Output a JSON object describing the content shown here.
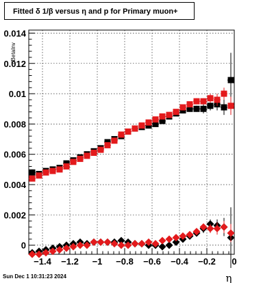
{
  "title": "Fitted δ 1/β versus η and p for Primary muon+",
  "timestamp": "Sun Dec  1 10:31:23 2024",
  "chart_data": {
    "type": "scatter",
    "title": "Fitted δ 1/β versus η and p for Primary muon+",
    "xlabel": "η",
    "ylabel": "dBetaInv",
    "xlim": [
      -1.5,
      0.0
    ],
    "ylim": [
      -0.0006,
      0.0142
    ],
    "grid": true,
    "x_ticks": [
      -1.4,
      -1.2,
      -1.0,
      -0.8,
      -0.6,
      -0.4,
      -0.2,
      0
    ],
    "x_tick_labels": [
      "−1.4",
      "−1.2",
      "−1",
      "−0.8",
      "−0.6",
      "−0.4",
      "−0.2",
      "0"
    ],
    "y_ticks": [
      0,
      0.002,
      0.004,
      0.006,
      0.008,
      0.01,
      0.012,
      0.014
    ],
    "y_tick_labels": [
      "0",
      "0.002",
      "0.004",
      "0.006",
      "0.008",
      "0.01",
      "0.012",
      "0.014"
    ],
    "x": [
      -1.475,
      -1.425,
      -1.375,
      -1.325,
      -1.275,
      -1.225,
      -1.175,
      -1.125,
      -1.075,
      -1.025,
      -0.975,
      -0.925,
      -0.875,
      -0.825,
      -0.775,
      -0.725,
      -0.675,
      -0.625,
      -0.575,
      -0.525,
      -0.475,
      -0.425,
      -0.375,
      -0.325,
      -0.275,
      -0.225,
      -0.175,
      -0.125,
      -0.075,
      -0.025
    ],
    "series": [
      {
        "color": "#000000",
        "marker": "square",
        "values": [
          0.0048,
          0.0047,
          0.0049,
          0.005,
          0.0051,
          0.0054,
          0.0056,
          0.0058,
          0.006,
          0.0062,
          0.0064,
          0.0068,
          0.007,
          0.0072,
          0.0075,
          0.0077,
          0.0078,
          0.0079,
          0.008,
          0.0082,
          0.0085,
          0.0087,
          0.0089,
          0.009,
          0.009,
          0.009,
          0.0092,
          0.0093,
          0.0091,
          0.0109
        ],
        "errors": [
          0.0002,
          0.0001,
          0.0001,
          0.0001,
          0.0001,
          0.0001,
          0.0001,
          0.0001,
          0.0001,
          0.0001,
          0.0001,
          0.0001,
          0.0001,
          0.0001,
          0.0001,
          0.0001,
          0.0001,
          0.0001,
          0.0001,
          0.0001,
          0.0001,
          0.0001,
          0.0002,
          0.0002,
          0.0002,
          0.0003,
          0.0003,
          0.0004,
          0.0005,
          0.0018
        ]
      },
      {
        "color": "#e31a1c",
        "marker": "square",
        "values": [
          0.0044,
          0.0046,
          0.0048,
          0.0049,
          0.005,
          0.0052,
          0.0055,
          0.0057,
          0.0059,
          0.0061,
          0.0063,
          0.0066,
          0.0069,
          0.0073,
          0.0075,
          0.0077,
          0.0079,
          0.0081,
          0.0083,
          0.0085,
          0.0086,
          0.0088,
          0.0091,
          0.0093,
          0.0095,
          0.0095,
          0.0097,
          0.0096,
          0.01,
          0.0092
        ],
        "errors": [
          0.0001,
          0.0001,
          0.0001,
          0.0001,
          0.0001,
          0.0001,
          0.0001,
          0.0001,
          0.0001,
          0.0001,
          0.0001,
          0.0001,
          0.0001,
          0.0001,
          0.0001,
          0.0001,
          0.0001,
          0.0001,
          0.0001,
          0.0001,
          0.0001,
          0.0001,
          0.0001,
          0.0001,
          0.0002,
          0.0002,
          0.0003,
          0.0004,
          0.0004,
          0.0006
        ]
      },
      {
        "color": "#000000",
        "marker": "diamond",
        "values": [
          -0.0005,
          -0.0004,
          -0.0003,
          -0.0002,
          -0.0001,
          0.0,
          0.0001,
          0.0002,
          0.0001,
          0.0002,
          0.0002,
          0.0002,
          0.0002,
          0.0003,
          0.0002,
          0.0001,
          0.0001,
          0.0,
          0.0,
          -0.0001,
          0.0,
          0.0002,
          0.0004,
          0.0006,
          0.0008,
          0.0011,
          0.0014,
          0.0013,
          0.0012,
          0.0005
        ],
        "errors": [
          0.0002,
          0.0001,
          0.0001,
          0.0001,
          0.0001,
          0.0001,
          0.0001,
          0.0001,
          0.0001,
          0.0001,
          0.0001,
          0.0001,
          0.0001,
          0.0001,
          0.0001,
          0.0001,
          0.0001,
          0.0001,
          0.0001,
          0.0001,
          0.0001,
          0.0001,
          0.0001,
          0.0002,
          0.0002,
          0.0003,
          0.0003,
          0.0004,
          0.0006,
          0.002
        ]
      },
      {
        "color": "#e31a1c",
        "marker": "diamond",
        "values": [
          -0.0006,
          -0.0006,
          -0.0005,
          -0.0004,
          -0.0003,
          -0.0002,
          -0.0001,
          0.0,
          0.0,
          0.0002,
          0.0002,
          0.0002,
          0.0001,
          0.0,
          0.0,
          0.0001,
          0.0001,
          0.0002,
          0.0001,
          0.0003,
          0.0004,
          0.0005,
          0.0006,
          0.0007,
          0.0009,
          0.0012,
          0.0011,
          0.0011,
          0.0012,
          0.0008
        ],
        "errors": [
          0.0001,
          0.0001,
          0.0001,
          0.0001,
          0.0001,
          0.0001,
          0.0001,
          0.0001,
          0.0001,
          0.0001,
          0.0001,
          0.0001,
          0.0001,
          0.0001,
          0.0001,
          0.0001,
          0.0001,
          0.0001,
          0.0001,
          0.0001,
          0.0001,
          0.0001,
          0.0001,
          0.0001,
          0.0002,
          0.0002,
          0.0003,
          0.0004,
          0.0004,
          0.0006
        ]
      }
    ]
  }
}
